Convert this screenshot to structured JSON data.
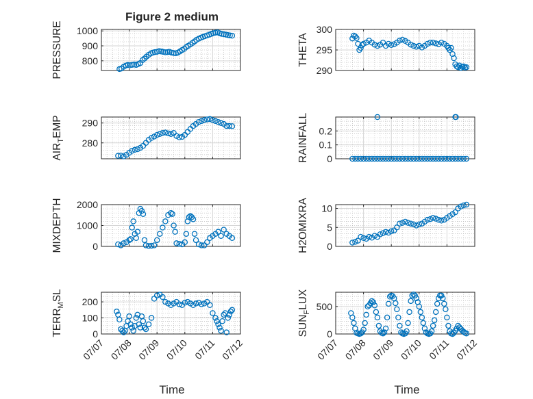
{
  "figure_title": "Figure 2 medium",
  "xlabel": "Time",
  "x_ticks": [
    "07/07",
    "07/08",
    "07/09",
    "07/10",
    "07/11",
    "07/12"
  ],
  "colors": {
    "marker": "#0072BD",
    "grid": "#b0b0b0",
    "axis": "#262626"
  },
  "chart_data": [
    {
      "type": "scatter",
      "name": "pressure",
      "ylabel_main": "PRESSURE",
      "ylabel_sub": "",
      "ylabel_tail": "",
      "title": "Figure 2 medium",
      "xlabel": "",
      "ylim": [
        735,
        1010
      ],
      "yticks": [
        800,
        900,
        1000
      ],
      "grid": true,
      "x": [
        0.65,
        0.72,
        0.8,
        0.88,
        0.95,
        1.02,
        1.1,
        1.18,
        1.25,
        1.32,
        1.4,
        1.48,
        1.55,
        1.62,
        1.7,
        1.78,
        1.85,
        1.92,
        2.0,
        2.08,
        2.15,
        2.22,
        2.3,
        2.38,
        2.45,
        2.52,
        2.6,
        2.68,
        2.75,
        2.82,
        2.9,
        2.98,
        3.05,
        3.12,
        3.2,
        3.28,
        3.35,
        3.42,
        3.5,
        3.58,
        3.65,
        3.72,
        3.8,
        3.88,
        3.95,
        4.02,
        4.1,
        4.18,
        4.25,
        4.32,
        4.4,
        4.48,
        4.55,
        4.62,
        4.7
      ],
      "y": [
        745,
        748,
        760,
        768,
        772,
        770,
        773,
        775,
        772,
        778,
        785,
        805,
        815,
        828,
        840,
        850,
        855,
        858,
        860,
        865,
        862,
        860,
        857,
        858,
        860,
        855,
        852,
        850,
        855,
        862,
        872,
        880,
        892,
        900,
        910,
        920,
        930,
        940,
        948,
        955,
        960,
        965,
        970,
        975,
        980,
        985,
        988,
        990,
        985,
        980,
        978,
        975,
        972,
        970,
        968
      ]
    },
    {
      "type": "scatter",
      "name": "theta",
      "ylabel_main": "THETA",
      "ylabel_sub": "",
      "ylabel_tail": "",
      "xlabel": "",
      "ylim": [
        290,
        300
      ],
      "yticks": [
        290,
        295,
        300
      ],
      "grid": true,
      "x": [
        0.6,
        0.65,
        0.7,
        0.75,
        0.8,
        0.85,
        0.9,
        0.95,
        1.0,
        1.1,
        1.2,
        1.3,
        1.4,
        1.5,
        1.6,
        1.7,
        1.8,
        1.9,
        2.0,
        2.1,
        2.2,
        2.3,
        2.4,
        2.5,
        2.6,
        2.7,
        2.8,
        2.9,
        3.0,
        3.1,
        3.2,
        3.3,
        3.4,
        3.5,
        3.6,
        3.7,
        3.8,
        3.9,
        4.0,
        4.05,
        4.1,
        4.15,
        4.2,
        4.25,
        4.3,
        4.35,
        4.4,
        4.45,
        4.5,
        4.55,
        4.6,
        4.65,
        4.7
      ],
      "y": [
        297.8,
        298.5,
        298.3,
        297.9,
        296.5,
        295.0,
        295.5,
        296.2,
        296.5,
        296.8,
        297.3,
        296.8,
        296.3,
        296.0,
        296.3,
        296.8,
        296.0,
        296.5,
        296.2,
        296.4,
        296.8,
        297.3,
        297.5,
        297.2,
        296.8,
        296.3,
        296.0,
        295.8,
        296.0,
        295.6,
        296.0,
        296.5,
        296.8,
        296.8,
        296.6,
        296.4,
        296.8,
        296.5,
        296.0,
        295.5,
        295.0,
        295.5,
        294.0,
        293.0,
        291.5,
        291.0,
        290.8,
        291.2,
        290.6,
        290.9,
        291.0,
        290.7,
        290.8
      ]
    },
    {
      "type": "scatter",
      "name": "air-temp",
      "ylabel_main": "AIR",
      "ylabel_sub": "T",
      "ylabel_tail": "EMP",
      "xlabel": "",
      "ylim": [
        272,
        293
      ],
      "yticks": [
        280,
        290
      ],
      "grid": true,
      "x": [
        0.6,
        0.7,
        0.8,
        0.9,
        1.0,
        1.1,
        1.2,
        1.3,
        1.4,
        1.5,
        1.6,
        1.7,
        1.8,
        1.9,
        2.0,
        2.1,
        2.2,
        2.3,
        2.4,
        2.5,
        2.6,
        2.7,
        2.8,
        2.9,
        3.0,
        3.1,
        3.2,
        3.3,
        3.4,
        3.5,
        3.6,
        3.7,
        3.8,
        3.9,
        4.0,
        4.1,
        4.2,
        4.3,
        4.4,
        4.5,
        4.6,
        4.7
      ],
      "y": [
        273.5,
        273.6,
        273.2,
        274.0,
        275.0,
        276.0,
        276.5,
        276.8,
        277.5,
        278.5,
        280.0,
        281.5,
        282.5,
        283.2,
        284.0,
        284.5,
        285.0,
        285.2,
        284.8,
        284.5,
        285.0,
        283.5,
        282.8,
        283.0,
        284.0,
        285.5,
        287.0,
        288.5,
        289.5,
        290.5,
        291.0,
        291.5,
        291.8,
        292.0,
        291.5,
        291.0,
        290.5,
        290.0,
        289.5,
        288.5,
        288.5,
        288.4
      ]
    },
    {
      "type": "scatter",
      "name": "rainfall",
      "ylabel_main": "RAINFALL",
      "ylabel_sub": "",
      "ylabel_tail": "",
      "xlabel": "",
      "ylim": [
        0,
        0.3
      ],
      "yticks": [
        0,
        0.1,
        0.2
      ],
      "grid": true,
      "x": [
        0.6,
        0.7,
        0.8,
        0.9,
        1.0,
        1.1,
        1.2,
        1.3,
        1.4,
        1.5,
        1.6,
        1.7,
        1.8,
        1.9,
        2.0,
        2.1,
        2.2,
        2.3,
        2.4,
        2.5,
        2.6,
        2.7,
        2.8,
        2.9,
        3.0,
        3.1,
        3.2,
        3.3,
        3.4,
        3.5,
        3.6,
        3.7,
        3.8,
        3.9,
        4.0,
        4.1,
        4.2,
        4.3,
        4.4,
        4.5,
        4.6,
        4.7,
        1.5,
        4.3,
        4.32
      ],
      "y": [
        0,
        0,
        0,
        0,
        0,
        0,
        0,
        0,
        0,
        0,
        0,
        0,
        0,
        0,
        0,
        0,
        0,
        0,
        0,
        0,
        0,
        0,
        0,
        0,
        0,
        0,
        0,
        0,
        0,
        0,
        0,
        0,
        0,
        0,
        0,
        0,
        0,
        0,
        0,
        0,
        0,
        0,
        0.3,
        0.3,
        0.3
      ]
    },
    {
      "type": "scatter",
      "name": "mixdepth",
      "ylabel_main": "MIXDEPTH",
      "ylabel_sub": "",
      "ylabel_tail": "",
      "xlabel": "",
      "ylim": [
        0,
        2000
      ],
      "yticks": [
        0,
        1000,
        2000
      ],
      "grid": true,
      "x": [
        0.6,
        0.7,
        0.8,
        0.9,
        1.0,
        1.05,
        1.1,
        1.15,
        1.2,
        1.25,
        1.3,
        1.35,
        1.4,
        1.45,
        1.5,
        1.55,
        1.6,
        1.7,
        1.8,
        1.9,
        2.0,
        2.1,
        2.2,
        2.3,
        2.4,
        2.5,
        2.55,
        2.6,
        2.65,
        2.7,
        2.8,
        2.9,
        3.0,
        3.05,
        3.1,
        3.15,
        3.2,
        3.25,
        3.3,
        3.35,
        3.4,
        3.5,
        3.6,
        3.7,
        3.8,
        3.9,
        4.0,
        4.1,
        4.2,
        4.3,
        4.4,
        4.5,
        4.6,
        4.7
      ],
      "y": [
        100,
        50,
        150,
        200,
        300,
        350,
        900,
        1200,
        600,
        400,
        700,
        1600,
        1800,
        1700,
        1550,
        300,
        50,
        20,
        30,
        50,
        300,
        600,
        900,
        1200,
        1500,
        1600,
        1550,
        1000,
        700,
        150,
        120,
        100,
        200,
        600,
        1200,
        1400,
        1450,
        1400,
        1300,
        600,
        300,
        100,
        50,
        50,
        200,
        400,
        500,
        600,
        700,
        500,
        800,
        600,
        500,
        400
      ]
    },
    {
      "type": "scatter",
      "name": "h2omixra",
      "ylabel_main": "H2OMIXRA",
      "ylabel_sub": "",
      "ylabel_tail": "",
      "xlabel": "",
      "ylim": [
        0,
        11
      ],
      "yticks": [
        0,
        5,
        10
      ],
      "grid": true,
      "x": [
        0.6,
        0.7,
        0.8,
        0.9,
        1.0,
        1.1,
        1.2,
        1.3,
        1.4,
        1.5,
        1.6,
        1.7,
        1.8,
        1.9,
        2.0,
        2.1,
        2.2,
        2.3,
        2.4,
        2.5,
        2.6,
        2.7,
        2.8,
        2.9,
        3.0,
        3.1,
        3.2,
        3.3,
        3.4,
        3.5,
        3.6,
        3.7,
        3.8,
        3.9,
        4.0,
        4.1,
        4.2,
        4.3,
        4.4,
        4.5,
        4.6,
        4.7
      ],
      "y": [
        1.0,
        1.2,
        1.5,
        2.5,
        2.2,
        2.0,
        2.5,
        2.3,
        2.8,
        2.5,
        3.2,
        3.5,
        3.8,
        3.6,
        4.0,
        4.2,
        5.0,
        6.0,
        6.2,
        6.5,
        6.2,
        6.0,
        5.8,
        5.5,
        5.8,
        6.0,
        6.5,
        7.0,
        7.2,
        7.5,
        7.3,
        7.0,
        6.8,
        7.0,
        7.5,
        8.0,
        8.5,
        9.0,
        10.0,
        10.5,
        10.8,
        11.0
      ]
    },
    {
      "type": "scatter",
      "name": "terr-msl",
      "ylabel_main": "TERR",
      "ylabel_sub": "M",
      "ylabel_tail": "SL",
      "xlabel": "Time",
      "ylim": [
        0,
        260
      ],
      "yticks": [
        0,
        100,
        200
      ],
      "grid": true,
      "x": [
        0.55,
        0.6,
        0.65,
        0.7,
        0.75,
        0.8,
        0.85,
        0.9,
        0.95,
        1.0,
        1.05,
        1.1,
        1.15,
        1.2,
        1.25,
        1.3,
        1.35,
        1.4,
        1.45,
        1.5,
        1.55,
        1.6,
        1.7,
        1.8,
        1.9,
        2.0,
        2.1,
        2.2,
        2.3,
        2.4,
        2.5,
        2.6,
        2.7,
        2.8,
        2.9,
        3.0,
        3.1,
        3.2,
        3.3,
        3.4,
        3.5,
        3.6,
        3.7,
        3.8,
        3.9,
        4.0,
        4.1,
        4.15,
        4.2,
        4.25,
        4.3,
        4.35,
        4.4,
        4.45,
        4.5,
        4.55,
        4.6,
        4.65,
        4.7
      ],
      "y": [
        140,
        120,
        90,
        30,
        20,
        10,
        20,
        50,
        80,
        110,
        60,
        40,
        20,
        50,
        100,
        120,
        60,
        40,
        110,
        80,
        40,
        30,
        60,
        100,
        220,
        240,
        245,
        230,
        200,
        190,
        180,
        190,
        200,
        185,
        180,
        195,
        200,
        190,
        180,
        190,
        195,
        185,
        190,
        200,
        180,
        130,
        100,
        80,
        60,
        40,
        20,
        80,
        120,
        130,
        10,
        100,
        120,
        140,
        150
      ]
    },
    {
      "type": "scatter",
      "name": "sun-flux",
      "ylabel_main": "SUN",
      "ylabel_sub": "F",
      "ylabel_tail": "LUX",
      "xlabel": "Time",
      "ylim": [
        0,
        760
      ],
      "yticks": [
        0,
        500
      ],
      "grid": true,
      "x": [
        0.55,
        0.6,
        0.65,
        0.7,
        0.75,
        0.8,
        0.85,
        0.9,
        0.95,
        1.0,
        1.05,
        1.1,
        1.15,
        1.2,
        1.25,
        1.3,
        1.35,
        1.4,
        1.45,
        1.5,
        1.55,
        1.6,
        1.65,
        1.7,
        1.75,
        1.8,
        1.85,
        1.9,
        1.95,
        2.0,
        2.05,
        2.1,
        2.15,
        2.2,
        2.25,
        2.3,
        2.35,
        2.4,
        2.45,
        2.5,
        2.55,
        2.6,
        2.65,
        2.7,
        2.75,
        2.8,
        2.85,
        2.9,
        2.95,
        3.0,
        3.05,
        3.1,
        3.15,
        3.2,
        3.25,
        3.3,
        3.35,
        3.4,
        3.45,
        3.5,
        3.55,
        3.6,
        3.65,
        3.7,
        3.75,
        3.8,
        3.85,
        3.9,
        3.95,
        4.0,
        4.05,
        4.1,
        4.15,
        4.2,
        4.25,
        4.3,
        4.35,
        4.4,
        4.45,
        4.5,
        4.55,
        4.6,
        4.65,
        4.7
      ],
      "y": [
        380,
        300,
        200,
        100,
        20,
        10,
        0,
        10,
        30,
        80,
        200,
        350,
        500,
        520,
        560,
        600,
        580,
        520,
        400,
        300,
        150,
        50,
        20,
        10,
        30,
        100,
        300,
        550,
        680,
        700,
        690,
        650,
        560,
        450,
        300,
        150,
        30,
        10,
        0,
        10,
        50,
        200,
        400,
        600,
        700,
        720,
        700,
        650,
        580,
        500,
        400,
        300,
        200,
        100,
        30,
        10,
        0,
        10,
        50,
        150,
        250,
        400,
        550,
        650,
        700,
        700,
        650,
        550,
        450,
        300,
        150,
        50,
        10,
        0,
        20,
        60,
        100,
        150,
        120,
        90,
        60,
        40,
        20,
        10
      ]
    }
  ]
}
